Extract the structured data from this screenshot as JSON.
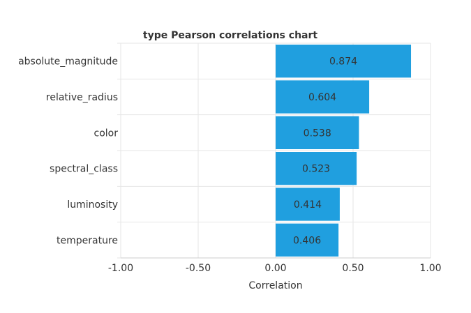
{
  "chart_data": {
    "type": "bar",
    "orientation": "horizontal",
    "title": "type Pearson correlations chart",
    "xlabel": "Correlation",
    "ylabel": "",
    "xlim": [
      -1.0,
      1.0
    ],
    "x_ticks": [
      "-1.00",
      "-0.50",
      "0.00",
      "0.50",
      "1.00"
    ],
    "x_tick_values": [
      -1.0,
      -0.5,
      0.0,
      0.5,
      1.0
    ],
    "categories": [
      "absolute_magnitude",
      "relative_radius",
      "color",
      "spectral_class",
      "luminosity",
      "temperature"
    ],
    "values": [
      0.874,
      0.604,
      0.538,
      0.523,
      0.414,
      0.406
    ],
    "value_labels": [
      "0.874",
      "0.604",
      "0.538",
      "0.523",
      "0.414",
      "0.406"
    ],
    "bar_color": "#209fdf",
    "grid": true,
    "legend": "none"
  }
}
